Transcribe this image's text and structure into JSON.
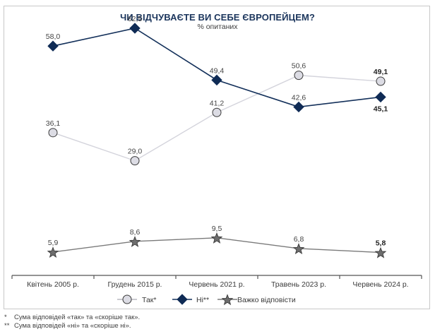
{
  "chart_data": {
    "type": "line",
    "title": "ЧИ ВІДЧУВАЄТЕ ВИ СЕБЕ ЄВРОПЕЙЦЕМ?",
    "subtitle": "% опитаних",
    "xlabel": "",
    "ylabel": "",
    "ylim": [
      0,
      70
    ],
    "grid": false,
    "legend_position": "bottom",
    "categories": [
      "Квітень 2005 р.",
      "Грудень 2015 р.",
      "Червень 2021 р.",
      "Травень 2023 р.",
      "Червень 2024 р."
    ],
    "series": [
      {
        "name": "Так*",
        "marker": "circle",
        "line_color": "#d4d4dc",
        "marker_fill": "#dcdce4",
        "marker_stroke": "#3a3a3a",
        "values": [
          36.1,
          29.0,
          41.2,
          50.6,
          49.1
        ],
        "labels": [
          "36,1",
          "29,0",
          "41,2",
          "50,6",
          "49,1"
        ],
        "label_position": "above"
      },
      {
        "name": "Ні**",
        "marker": "diamond",
        "line_color": "#13305a",
        "marker_fill": "#0f2b55",
        "marker_stroke": "#0f2b55",
        "values": [
          58.0,
          62.5,
          49.4,
          42.6,
          45.1
        ],
        "labels": [
          "58,0",
          "62,5",
          "49,4",
          "42,6",
          "45,1"
        ],
        "label_position": "above",
        "last_label_position": "below"
      },
      {
        "name": "Важко відповісти",
        "marker": "star",
        "line_color": "#7a7a7a",
        "marker_fill": "#6e6e6e",
        "marker_stroke": "#3a3a3a",
        "values": [
          5.9,
          8.6,
          9.5,
          6.8,
          5.8
        ],
        "labels": [
          "5,9",
          "8,6",
          "9,5",
          "6,8",
          "5,8"
        ],
        "label_position": "above"
      }
    ],
    "last_point_labels_bold": true
  },
  "footnotes": [
    {
      "mark": "*",
      "text": "Сума відповідей «так» та «скоріше так»."
    },
    {
      "mark": "**",
      "text": "Сума відповідей «ні» та «скоріше ні»."
    }
  ]
}
